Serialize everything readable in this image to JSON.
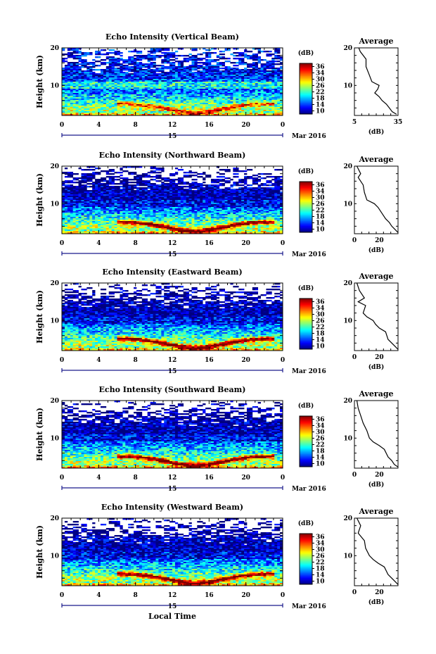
{
  "x_axis_title": "Local Time",
  "colorbar": {
    "unit": "(dB)",
    "tick_labels": [
      "36",
      "34",
      "30",
      "26",
      "22",
      "18",
      "14",
      "10"
    ],
    "tick_values": [
      36,
      34,
      30,
      26,
      22,
      18,
      14,
      10
    ],
    "range": [
      10,
      36
    ],
    "colormap": "jet"
  },
  "date_label": "Mar 2016",
  "day_label": "15",
  "chart_data": [
    {
      "type": "heatmap",
      "title": "Echo Intensity (Vertical Beam)",
      "ylabel": "Height (km)",
      "xlabel": "Local Time",
      "x_ticks": [
        "0",
        "4",
        "8",
        "12",
        "16",
        "20",
        "0"
      ],
      "x_range": [
        0,
        24
      ],
      "y_ticks": [
        "20",
        "10"
      ],
      "y_range": [
        2,
        20
      ],
      "profile": {
        "title": "Average",
        "xlabel": "(dB)",
        "x_ticks": [
          "5",
          "35"
        ],
        "x_range": [
          5,
          35
        ],
        "points": [
          [
            8,
            20
          ],
          [
            9,
            19
          ],
          [
            13,
            17
          ],
          [
            13,
            15
          ],
          [
            15,
            13
          ],
          [
            17,
            11
          ],
          [
            22,
            10
          ],
          [
            21,
            9
          ],
          [
            19,
            8
          ],
          [
            22,
            7
          ],
          [
            24,
            6
          ],
          [
            27,
            5
          ],
          [
            29,
            4
          ],
          [
            31,
            3
          ],
          [
            34,
            2.3
          ]
        ]
      }
    },
    {
      "type": "heatmap",
      "title": "Echo Intensity (Northward Beam)",
      "ylabel": "Height (km)",
      "xlabel": "Local Time",
      "x_ticks": [
        "0",
        "4",
        "8",
        "12",
        "16",
        "20",
        "0"
      ],
      "x_range": [
        0,
        24
      ],
      "y_ticks": [
        "20",
        "10"
      ],
      "y_range": [
        2,
        20
      ],
      "profile": {
        "title": "Average",
        "xlabel": "(dB)",
        "x_ticks": [
          "0",
          "20"
        ],
        "x_range": [
          0,
          35
        ],
        "points": [
          [
            2,
            20
          ],
          [
            5,
            18
          ],
          [
            3,
            17
          ],
          [
            7,
            15
          ],
          [
            8,
            13
          ],
          [
            10,
            11
          ],
          [
            16,
            10
          ],
          [
            19,
            9
          ],
          [
            23,
            7
          ],
          [
            25,
            6
          ],
          [
            28,
            5
          ],
          [
            30,
            4
          ],
          [
            33,
            3
          ],
          [
            35,
            2.3
          ]
        ]
      }
    },
    {
      "type": "heatmap",
      "title": "Echo Intensity (Eastward Beam)",
      "ylabel": "Height (km)",
      "xlabel": "Local Time",
      "x_ticks": [
        "0",
        "4",
        "8",
        "12",
        "16",
        "20",
        "0"
      ],
      "x_range": [
        0,
        24
      ],
      "y_ticks": [
        "20",
        "10"
      ],
      "y_range": [
        2,
        20
      ],
      "profile": {
        "title": "Average",
        "xlabel": "(dB)",
        "x_ticks": [
          "0",
          "20"
        ],
        "x_range": [
          0,
          35
        ],
        "points": [
          [
            2,
            20
          ],
          [
            4,
            18
          ],
          [
            8,
            16
          ],
          [
            3,
            15
          ],
          [
            9,
            14
          ],
          [
            7,
            12
          ],
          [
            10,
            11
          ],
          [
            15,
            10
          ],
          [
            17,
            9
          ],
          [
            20,
            8
          ],
          [
            25,
            7
          ],
          [
            27,
            5
          ],
          [
            30,
            4
          ],
          [
            33,
            3
          ],
          [
            35,
            2.3
          ]
        ]
      }
    },
    {
      "type": "heatmap",
      "title": "Echo Intensity (Southward Beam)",
      "ylabel": "Height (km)",
      "xlabel": "Local Time",
      "x_ticks": [
        "0",
        "4",
        "8",
        "12",
        "16",
        "20",
        "0"
      ],
      "x_range": [
        0,
        24
      ],
      "y_ticks": [
        "20",
        "10"
      ],
      "y_range": [
        2,
        20
      ],
      "profile": {
        "title": "Average",
        "xlabel": "(dB)",
        "x_ticks": [
          "0",
          "20"
        ],
        "x_range": [
          0,
          35
        ],
        "points": [
          [
            2,
            20
          ],
          [
            3,
            18
          ],
          [
            5,
            16
          ],
          [
            7,
            14
          ],
          [
            10,
            12
          ],
          [
            12,
            10
          ],
          [
            15,
            9
          ],
          [
            20,
            8
          ],
          [
            24,
            7
          ],
          [
            27,
            5
          ],
          [
            30,
            4
          ],
          [
            32,
            3
          ],
          [
            35,
            2.3
          ]
        ]
      }
    },
    {
      "type": "heatmap",
      "title": "Echo Intensity (Westward Beam)",
      "ylabel": "Height (km)",
      "xlabel": "Local Time",
      "x_ticks": [
        "0",
        "4",
        "8",
        "12",
        "16",
        "20",
        "0"
      ],
      "x_range": [
        0,
        24
      ],
      "y_ticks": [
        "20",
        "10"
      ],
      "y_range": [
        2,
        20
      ],
      "profile": {
        "title": "Average",
        "xlabel": "(dB)",
        "x_ticks": [
          "0",
          "20"
        ],
        "x_range": [
          0,
          35
        ],
        "points": [
          [
            2,
            20
          ],
          [
            5,
            18
          ],
          [
            3,
            16
          ],
          [
            8,
            14
          ],
          [
            9,
            12
          ],
          [
            12,
            10
          ],
          [
            15,
            9
          ],
          [
            19,
            8
          ],
          [
            24,
            7
          ],
          [
            27,
            5
          ],
          [
            30,
            4
          ],
          [
            33,
            3
          ],
          [
            35,
            2.3
          ]
        ]
      }
    }
  ]
}
